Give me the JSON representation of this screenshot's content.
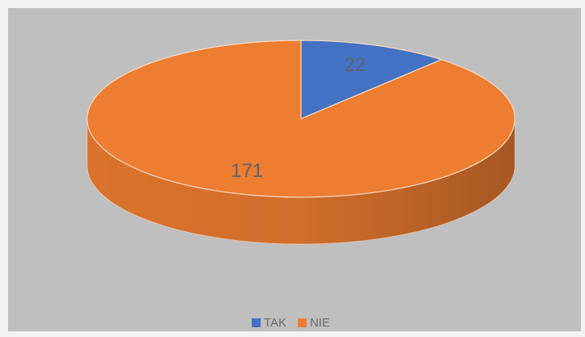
{
  "chart_data": {
    "type": "pie3d",
    "categories": [
      "TAK",
      "NIE"
    ],
    "values": [
      22,
      171
    ],
    "colors": [
      "#4472c4",
      "#ed7d31"
    ]
  }
}
